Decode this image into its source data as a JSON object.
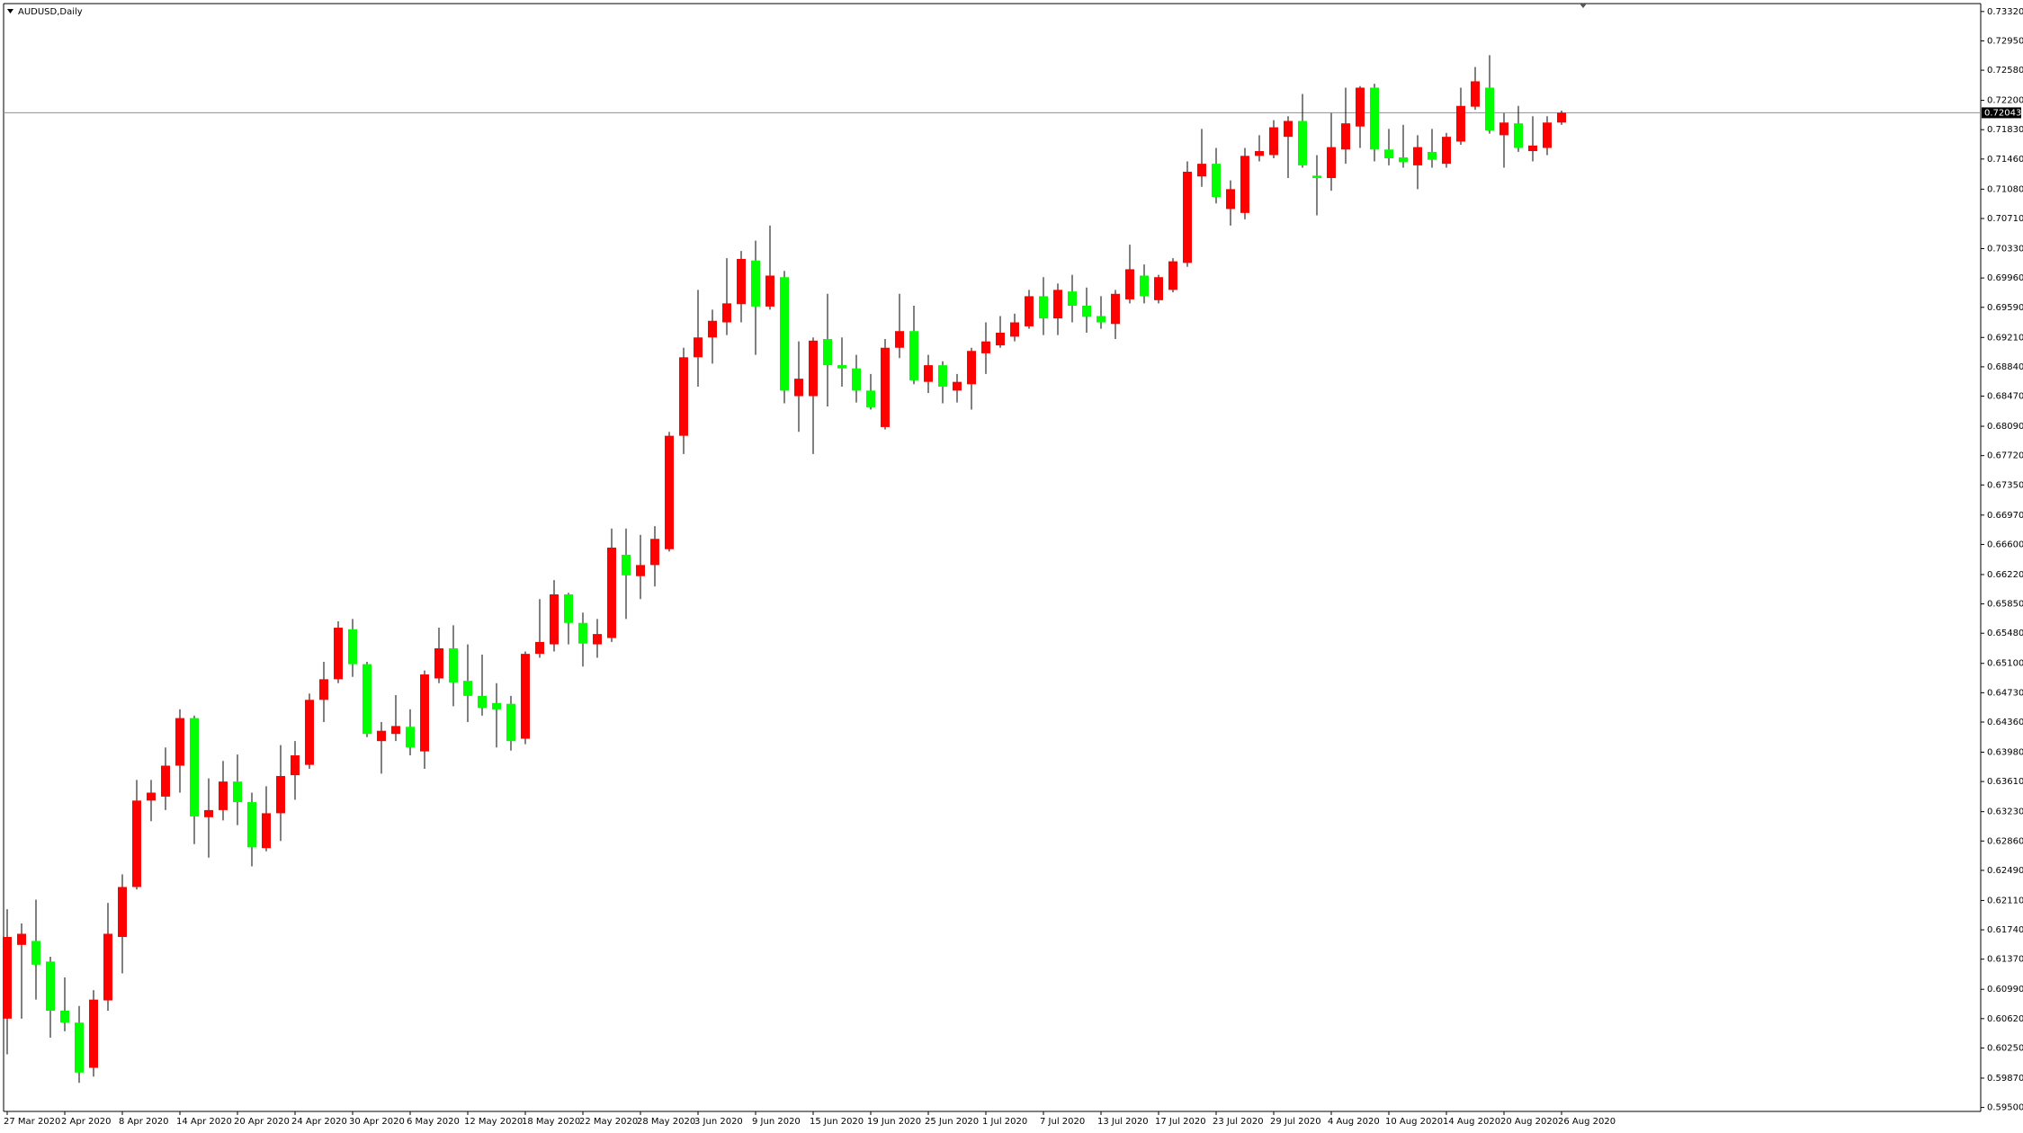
{
  "chart_data": {
    "type": "candlestick",
    "title": "AUDUSD,Daily",
    "up_color": "#ff0000",
    "down_color": "#00ff00",
    "wick_color": "#000000",
    "price_line": {
      "value": 0.72043,
      "label": "0.72043",
      "color": "#8c8ca8"
    },
    "ylim": [
      0.5945,
      0.7342
    ],
    "yticks": [
      {
        "value": 0.7332,
        "label": "0.73320"
      },
      {
        "value": 0.7295,
        "label": "0.72950"
      },
      {
        "value": 0.7258,
        "label": "0.72580"
      },
      {
        "value": 0.722,
        "label": "0.72200"
      },
      {
        "value": 0.7183,
        "label": "0.71830"
      },
      {
        "value": 0.7146,
        "label": "0.71460"
      },
      {
        "value": 0.7108,
        "label": "0.71080"
      },
      {
        "value": 0.7071,
        "label": "0.70710"
      },
      {
        "value": 0.7033,
        "label": "0.70330"
      },
      {
        "value": 0.6996,
        "label": "0.69960"
      },
      {
        "value": 0.6959,
        "label": "0.69590"
      },
      {
        "value": 0.6921,
        "label": "0.69210"
      },
      {
        "value": 0.6884,
        "label": "0.68840"
      },
      {
        "value": 0.6847,
        "label": "0.68470"
      },
      {
        "value": 0.6809,
        "label": "0.68090"
      },
      {
        "value": 0.6772,
        "label": "0.67720"
      },
      {
        "value": 0.6735,
        "label": "0.67350"
      },
      {
        "value": 0.6697,
        "label": "0.66970"
      },
      {
        "value": 0.666,
        "label": "0.66600"
      },
      {
        "value": 0.6622,
        "label": "0.66220"
      },
      {
        "value": 0.6585,
        "label": "0.65850"
      },
      {
        "value": 0.6548,
        "label": "0.65480"
      },
      {
        "value": 0.651,
        "label": "0.65100"
      },
      {
        "value": 0.6473,
        "label": "0.64730"
      },
      {
        "value": 0.6436,
        "label": "0.64360"
      },
      {
        "value": 0.6398,
        "label": "0.63980"
      },
      {
        "value": 0.6361,
        "label": "0.63610"
      },
      {
        "value": 0.6323,
        "label": "0.63230"
      },
      {
        "value": 0.6286,
        "label": "0.62860"
      },
      {
        "value": 0.6249,
        "label": "0.62490"
      },
      {
        "value": 0.6211,
        "label": "0.62110"
      },
      {
        "value": 0.6174,
        "label": "0.61740"
      },
      {
        "value": 0.6137,
        "label": "0.61370"
      },
      {
        "value": 0.6099,
        "label": "0.60990"
      },
      {
        "value": 0.6062,
        "label": "0.60620"
      },
      {
        "value": 0.6025,
        "label": "0.60250"
      },
      {
        "value": 0.5987,
        "label": "0.59870"
      },
      {
        "value": 0.595,
        "label": "0.59500"
      }
    ],
    "categories": [
      "27 Mar 2020",
      null,
      null,
      null,
      "2 Apr 2020",
      null,
      null,
      null,
      "8 Apr 2020",
      null,
      null,
      null,
      "14 Apr 2020",
      null,
      null,
      null,
      "20 Apr 2020",
      null,
      null,
      null,
      "24 Apr 2020",
      null,
      null,
      null,
      "30 Apr 2020",
      null,
      null,
      null,
      "6 May 2020",
      null,
      null,
      null,
      "12 May 2020",
      null,
      null,
      null,
      "18 May 2020",
      null,
      null,
      null,
      "22 May 2020",
      null,
      null,
      null,
      "28 May 2020",
      null,
      null,
      null,
      "3 Jun 2020",
      null,
      null,
      null,
      "9 Jun 2020",
      null,
      null,
      null,
      "15 Jun 2020",
      null,
      null,
      null,
      "19 Jun 2020",
      null,
      null,
      null,
      "25 Jun 2020",
      null,
      null,
      null,
      "1 Jul 2020",
      null,
      null,
      null,
      "7 Jul 2020",
      null,
      null,
      null,
      "13 Jul 2020",
      null,
      null,
      null,
      "17 Jul 2020",
      null,
      null,
      null,
      "23 Jul 2020",
      null,
      null,
      null,
      "29 Jul 2020",
      null,
      null,
      null,
      "4 Aug 2020",
      null,
      null,
      null,
      "10 Aug 2020",
      null,
      null,
      null,
      "14 Aug 2020",
      null,
      null,
      null,
      "20 Aug 2020",
      null,
      null,
      null,
      "26 Aug 2020"
    ],
    "open": [
      0.6062,
      0.6155,
      0.616,
      0.6134,
      0.6072,
      0.6057,
      0.6,
      0.6085,
      0.6165,
      0.6228,
      0.6337,
      0.6342,
      0.6381,
      0.6441,
      0.6316,
      0.6325,
      0.6361,
      0.6335,
      0.6277,
      0.6321,
      0.6369,
      0.6382,
      0.6464,
      0.649,
      0.6553,
      0.6509,
      0.6412,
      0.6421,
      0.643,
      0.6399,
      0.6491,
      0.6529,
      0.6488,
      0.6469,
      0.646,
      0.6459,
      0.6415,
      0.6522,
      0.6534,
      0.6597,
      0.6561,
      0.6534,
      0.6542,
      0.6647,
      0.662,
      0.6634,
      0.6654,
      0.6797,
      0.6896,
      0.6921,
      0.694,
      0.6963,
      0.7018,
      0.696,
      0.6997,
      0.6847,
      0.6847,
      0.6919,
      0.6886,
      0.6882,
      0.6854,
      0.6808,
      0.6908,
      0.6929,
      0.6865,
      0.6886,
      0.6854,
      0.6862,
      0.6901,
      0.6911,
      0.6922,
      0.6935,
      0.6973,
      0.6945,
      0.6979,
      0.6961,
      0.6948,
      0.6938,
      0.6969,
      0.6999,
      0.6968,
      0.6981,
      0.7015,
      0.7124,
      0.714,
      0.7083,
      0.7078,
      0.715,
      0.7151,
      0.7174,
      0.7194,
      0.7125,
      0.7122,
      0.7158,
      0.7187,
      0.7236,
      0.7158,
      0.7148,
      0.7138,
      0.7155,
      0.714,
      0.7168,
      0.7212,
      0.7236,
      0.7176,
      0.7191,
      0.7156,
      0.716,
      0.7192
    ],
    "high": [
      0.62,
      0.6182,
      0.6212,
      0.614,
      0.6114,
      0.6078,
      0.6098,
      0.6208,
      0.6244,
      0.6363,
      0.6363,
      0.6404,
      0.6452,
      0.6444,
      0.6365,
      0.6387,
      0.6395,
      0.6347,
      0.6355,
      0.6407,
      0.6412,
      0.6472,
      0.6512,
      0.6563,
      0.6566,
      0.6512,
      0.6436,
      0.647,
      0.6452,
      0.6501,
      0.6555,
      0.6558,
      0.6534,
      0.6521,
      0.6485,
      0.6469,
      0.6525,
      0.6591,
      0.6615,
      0.6599,
      0.6574,
      0.6566,
      0.668,
      0.668,
      0.6672,
      0.6683,
      0.6802,
      0.6908,
      0.6981,
      0.6956,
      0.7021,
      0.703,
      0.7043,
      0.7062,
      0.7005,
      0.6916,
      0.6921,
      0.6976,
      0.6921,
      0.6899,
      0.6875,
      0.6919,
      0.6976,
      0.6961,
      0.6899,
      0.6891,
      0.6875,
      0.6908,
      0.694,
      0.6948,
      0.6951,
      0.6981,
      0.6997,
      0.6989,
      0.7,
      0.6984,
      0.6973,
      0.6981,
      0.7038,
      0.7013,
      0.7,
      0.7021,
      0.7143,
      0.7184,
      0.716,
      0.7119,
      0.716,
      0.7176,
      0.7195,
      0.72,
      0.7228,
      0.7151,
      0.7204,
      0.7236,
      0.7238,
      0.7241,
      0.7184,
      0.7189,
      0.7176,
      0.7184,
      0.7179,
      0.7236,
      0.7262,
      0.7277,
      0.7204,
      0.7213,
      0.72,
      0.72,
      0.7207
    ],
    "low": [
      0.6017,
      0.6062,
      0.6086,
      0.6038,
      0.6046,
      0.5981,
      0.5989,
      0.6072,
      0.6119,
      0.6225,
      0.6311,
      0.6325,
      0.6347,
      0.6282,
      0.6265,
      0.6312,
      0.6306,
      0.6254,
      0.6273,
      0.6286,
      0.6338,
      0.6377,
      0.6436,
      0.6485,
      0.6493,
      0.6417,
      0.6371,
      0.6412,
      0.6394,
      0.6377,
      0.6485,
      0.6456,
      0.6436,
      0.6444,
      0.6404,
      0.64,
      0.6408,
      0.6517,
      0.6525,
      0.6534,
      0.6506,
      0.6517,
      0.6537,
      0.6566,
      0.6591,
      0.6607,
      0.6651,
      0.6774,
      0.6859,
      0.6888,
      0.6924,
      0.694,
      0.6899,
      0.6956,
      0.6838,
      0.6802,
      0.6774,
      0.6834,
      0.6859,
      0.6839,
      0.683,
      0.6805,
      0.6895,
      0.6862,
      0.6851,
      0.6838,
      0.6839,
      0.683,
      0.6875,
      0.6908,
      0.6916,
      0.6932,
      0.6924,
      0.6924,
      0.694,
      0.6927,
      0.6932,
      0.6919,
      0.6964,
      0.6964,
      0.6964,
      0.6978,
      0.701,
      0.7111,
      0.709,
      0.7062,
      0.707,
      0.7143,
      0.7147,
      0.7122,
      0.7135,
      0.7075,
      0.7106,
      0.714,
      0.716,
      0.7143,
      0.7138,
      0.7135,
      0.7108,
      0.7135,
      0.7135,
      0.7164,
      0.7208,
      0.7178,
      0.7135,
      0.7155,
      0.7143,
      0.7151,
      0.7189
    ],
    "close": [
      0.6165,
      0.6169,
      0.613,
      0.6072,
      0.6057,
      0.5994,
      0.6086,
      0.6169,
      0.6228,
      0.6337,
      0.6347,
      0.6381,
      0.6441,
      0.6317,
      0.6325,
      0.6361,
      0.6335,
      0.6278,
      0.6321,
      0.6368,
      0.6394,
      0.6464,
      0.649,
      0.6555,
      0.6509,
      0.6421,
      0.6425,
      0.6431,
      0.6404,
      0.6496,
      0.6529,
      0.6486,
      0.6469,
      0.6454,
      0.6452,
      0.6412,
      0.6522,
      0.6537,
      0.6597,
      0.6561,
      0.6535,
      0.6547,
      0.6656,
      0.6621,
      0.6634,
      0.6667,
      0.6797,
      0.6896,
      0.6921,
      0.6942,
      0.6964,
      0.702,
      0.696,
      0.6999,
      0.6854,
      0.6869,
      0.6917,
      0.6886,
      0.6882,
      0.6854,
      0.6833,
      0.6908,
      0.6929,
      0.6867,
      0.6886,
      0.6859,
      0.6865,
      0.6904,
      0.6916,
      0.6927,
      0.694,
      0.6973,
      0.6945,
      0.6981,
      0.6961,
      0.6947,
      0.694,
      0.6976,
      0.7007,
      0.6973,
      0.6997,
      0.7017,
      0.713,
      0.714,
      0.7098,
      0.7108,
      0.715,
      0.7156,
      0.7186,
      0.7194,
      0.7138,
      0.7122,
      0.7161,
      0.7191,
      0.7236,
      0.7158,
      0.7147,
      0.7142,
      0.7161,
      0.7145,
      0.7174,
      0.7213,
      0.7244,
      0.7182,
      0.7192,
      0.716,
      0.7163,
      0.7192,
      0.72043
    ]
  }
}
